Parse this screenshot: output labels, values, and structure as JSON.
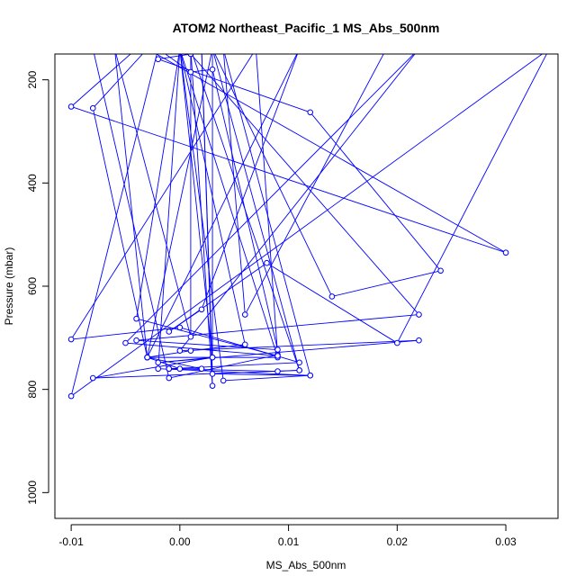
{
  "chart_data": {
    "type": "line",
    "title": "ATOM2 Northeast_Pacific_1 MS_Abs_500nm",
    "xlabel": "MS_Abs_500nm",
    "ylabel": "Pressure (mbar)",
    "xlim": [
      -0.0115,
      0.0348
    ],
    "ylim": [
      1050,
      150
    ],
    "y_reversed": true,
    "grid": false,
    "xticks": [
      -0.01,
      0.0,
      0.01,
      0.02,
      0.03
    ],
    "xtick_labels": [
      "-0.01",
      "0.00",
      "0.01",
      "0.02",
      "0.03"
    ],
    "yticks": [
      200,
      400,
      600,
      800,
      1000
    ],
    "ytick_labels": [
      "200",
      "400",
      "600",
      "800",
      "1000"
    ],
    "series": [
      {
        "color": "#0000ff",
        "marker": "open-circle",
        "points": [
          {
            "x": -0.004,
            "y": 140
          },
          {
            "x": -0.01,
            "y": 252
          },
          {
            "x": 0.03,
            "y": 535
          },
          {
            "x": -0.003,
            "y": 140
          },
          {
            "x": -0.008,
            "y": 255
          },
          {
            "x": -0.003,
            "y": 738
          },
          {
            "x": 0.011,
            "y": 140
          },
          {
            "x": 0.002,
            "y": 645
          },
          {
            "x": -0.001,
            "y": 688
          },
          {
            "x": 0.008,
            "y": 555
          },
          {
            "x": 0.02,
            "y": 710
          },
          {
            "x": 0.034,
            "y": 140
          },
          {
            "x": -0.01,
            "y": 813
          },
          {
            "x": -0.002,
            "y": 140
          },
          {
            "x": 0.001,
            "y": 185
          },
          {
            "x": 0.003,
            "y": 180
          },
          {
            "x": 0.009,
            "y": 723
          },
          {
            "x": -0.004,
            "y": 705
          },
          {
            "x": 0.022,
            "y": 655
          },
          {
            "x": 0.001,
            "y": 150
          },
          {
            "x": -0.002,
            "y": 160
          },
          {
            "x": 0.012,
            "y": 263
          },
          {
            "x": 0.024,
            "y": 570
          },
          {
            "x": 0.014,
            "y": 620
          },
          {
            "x": 0.003,
            "y": 140
          },
          {
            "x": 0.011,
            "y": 763
          },
          {
            "x": -0.008,
            "y": 778
          },
          {
            "x": 0.003,
            "y": 738
          },
          {
            "x": 0.003,
            "y": 140
          },
          {
            "x": -0.003,
            "y": 738
          },
          {
            "x": 0.001,
            "y": 725
          },
          {
            "x": 0.006,
            "y": 713
          },
          {
            "x": 0.0,
            "y": 140
          },
          {
            "x": -0.002,
            "y": 760
          },
          {
            "x": 0.012,
            "y": 773
          },
          {
            "x": 0.004,
            "y": 140
          },
          {
            "x": 0.006,
            "y": 655
          },
          {
            "x": 0.019,
            "y": 140
          },
          {
            "x": -0.008,
            "y": 140
          },
          {
            "x": -0.001,
            "y": 778
          },
          {
            "x": 0.009,
            "y": 733
          },
          {
            "x": 0.007,
            "y": 140
          },
          {
            "x": -0.01,
            "y": 703
          },
          {
            "x": 0.0,
            "y": 680
          },
          {
            "x": 0.011,
            "y": 748
          },
          {
            "x": -0.001,
            "y": 760
          },
          {
            "x": 0.0,
            "y": 760
          },
          {
            "x": -0.003,
            "y": 738
          },
          {
            "x": 0.009,
            "y": 738
          },
          {
            "x": 0.0,
            "y": 140
          },
          {
            "x": -0.004,
            "y": 663
          },
          {
            "x": 0.009,
            "y": 735
          },
          {
            "x": -0.005,
            "y": 710
          },
          {
            "x": 0.022,
            "y": 140
          },
          {
            "x": 0.0,
            "y": 725
          },
          {
            "x": 0.022,
            "y": 705
          },
          {
            "x": -0.002,
            "y": 748
          },
          {
            "x": 0.003,
            "y": 738
          },
          {
            "x": 0.0,
            "y": 140
          },
          {
            "x": 0.004,
            "y": 783
          },
          {
            "x": 0.012,
            "y": 773
          },
          {
            "x": 0.003,
            "y": 770
          },
          {
            "x": 0.002,
            "y": 140
          },
          {
            "x": 0.003,
            "y": 793
          },
          {
            "x": 0.001,
            "y": 140
          },
          {
            "x": 0.001,
            "y": 698
          },
          {
            "x": -0.006,
            "y": 140
          },
          {
            "x": -0.003,
            "y": 738
          },
          {
            "x": 0.002,
            "y": 760
          },
          {
            "x": -0.001,
            "y": 760
          },
          {
            "x": 0.009,
            "y": 765
          },
          {
            "x": 0.011,
            "y": 763
          },
          {
            "x": 0.001,
            "y": 140
          }
        ]
      }
    ]
  }
}
